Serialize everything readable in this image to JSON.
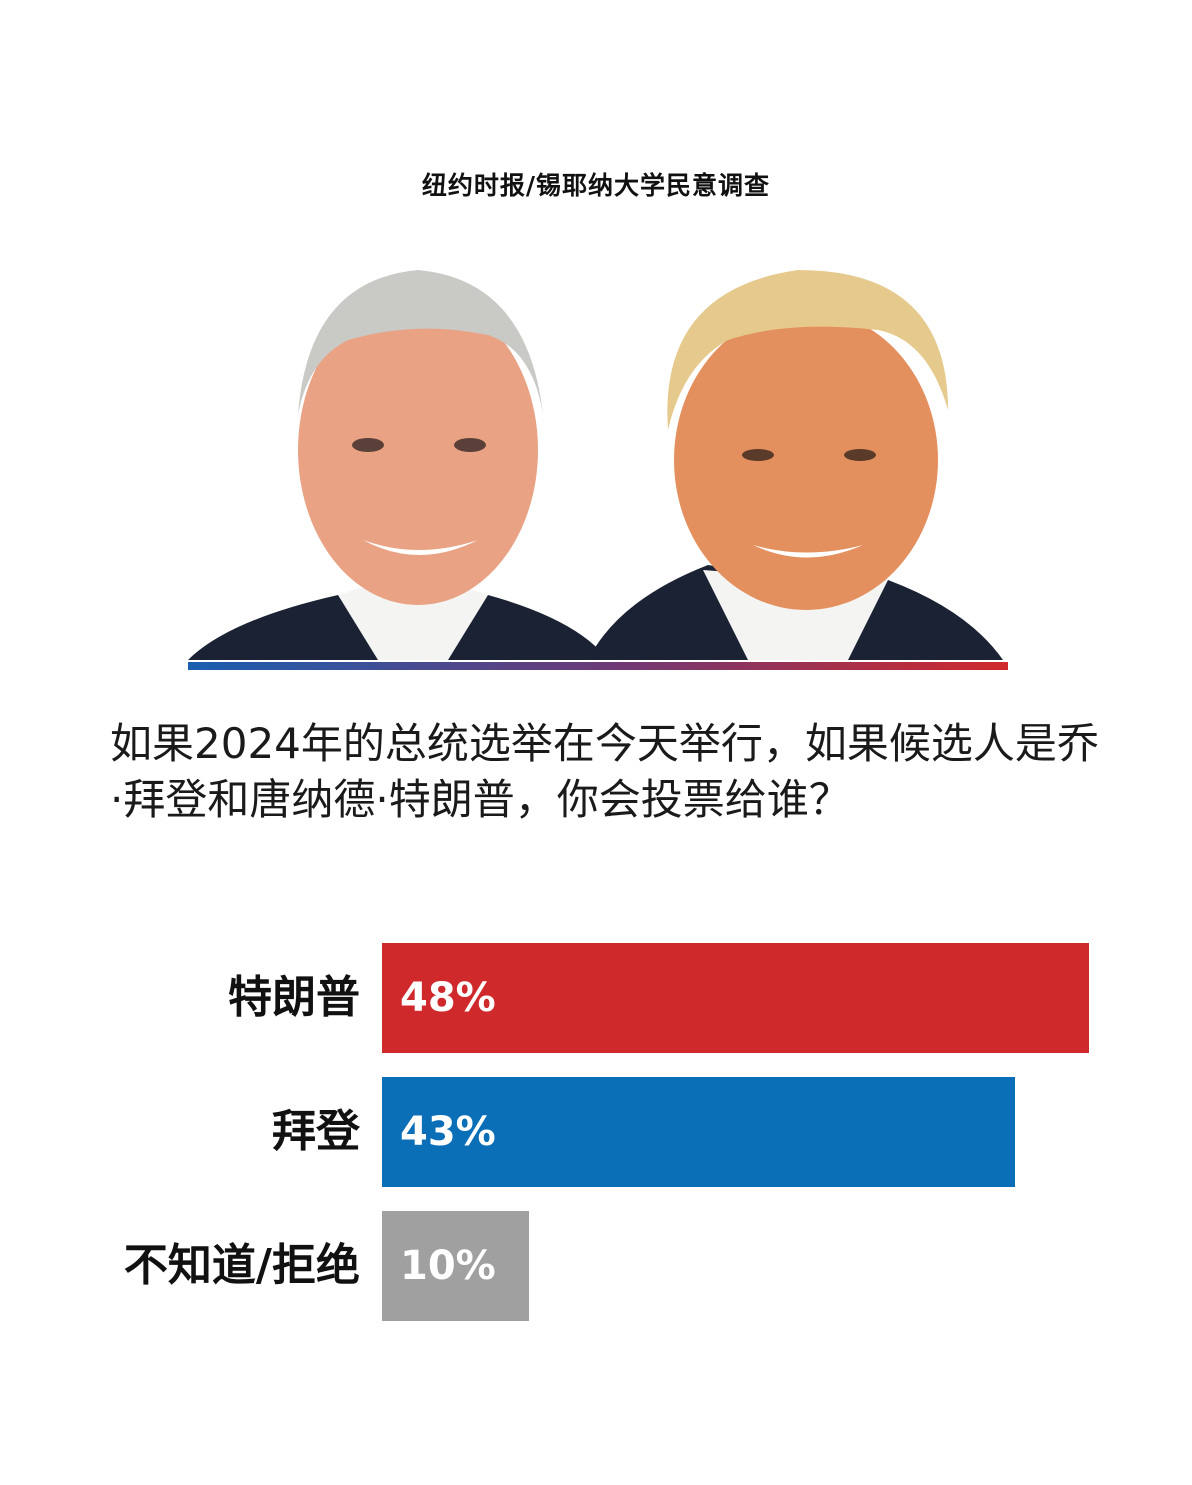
{
  "source": "纽约时报/锡耶纳大学民意调查",
  "question": "如果2024年的总统选举在今天举行，如果候选人是乔·拜登和唐纳德·特朗普，你会投票给谁？",
  "chart_data": {
    "type": "bar",
    "orientation": "horizontal",
    "title": "如果2024年的总统选举在今天举行，如果候选人是乔·拜登和唐纳德·特朗普，你会投票给谁？",
    "categories": [
      "特朗普",
      "拜登",
      "不知道/拒绝"
    ],
    "values": [
      48,
      43,
      10
    ],
    "value_labels": [
      "48%",
      "43%",
      "10%"
    ],
    "colors": [
      "#d0292c",
      "#0a6fb7",
      "#a0a0a0"
    ],
    "unit": "%",
    "xlim": [
      0,
      48
    ],
    "grid": false,
    "legend": "none"
  }
}
